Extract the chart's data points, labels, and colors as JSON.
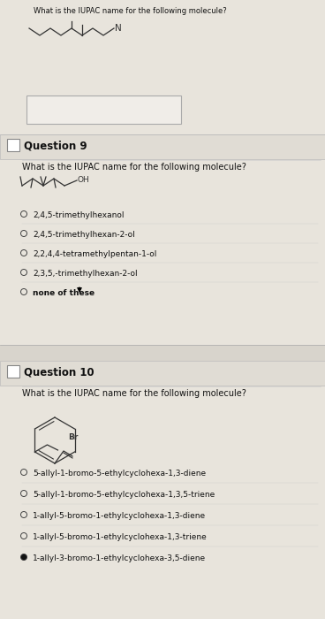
{
  "bg_color": "#d8d4cc",
  "section_bg": "#e8e4dc",
  "white_box_color": "#f5f2ee",
  "header_bg": "#e0dcd4",
  "text_color": "#111111",
  "dark_text": "#222222",
  "title_top": "What is the IUPAC name for the following molecule?",
  "q9_header": "Question 9",
  "q9_question": "What is the IUPAC name for the following molecule?",
  "q9_options": [
    "2,4,5-trimethylhexanol",
    "2,4,5-trimethylhexan-2-ol",
    "2,2,4,4-tetramethylpentan-1-ol",
    "2,3,5,-trimethylhexan-2-ol",
    "none of these"
  ],
  "q10_header": "Question 10",
  "q10_question": "What is the IUPAC name for the following molecule?",
  "q10_options": [
    "5-allyl-1-bromo-5-ethylcyclohexa-1,3-diene",
    "5-allyl-1-bromo-5-ethylcyclohexa-1,3,5-triene",
    "1-allyl-5-bromo-1-ethylcyclohexa-1,3-diene",
    "1-allyl-5-bromo-1-ethylcyclohexa-1,3-triene",
    "1-allyl-3-bromo-1-ethylcyclohexa-3,5-diene"
  ],
  "header_fontsize": 8.5,
  "question_fontsize": 7.0,
  "option_fontsize": 6.5,
  "small_fontsize": 6.0
}
